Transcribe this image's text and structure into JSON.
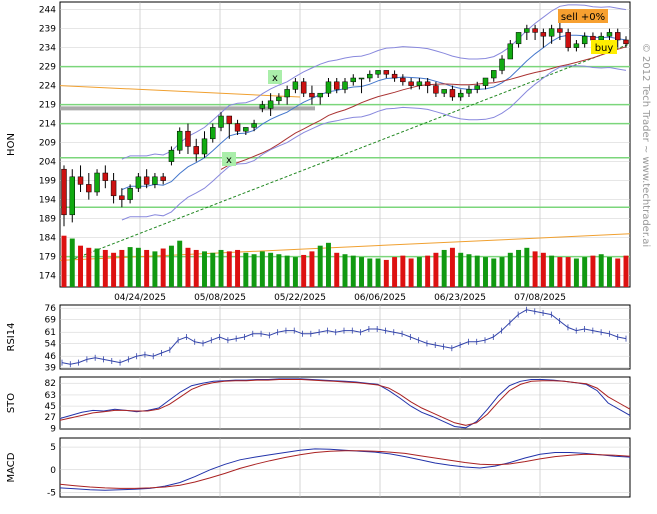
{
  "chart_data": {
    "type": "candlestick",
    "ticker": "HON",
    "watermark": "© 2012 Tech Trader ~ www.techtrader.ai",
    "x_labels": [
      "04/24/2025",
      "05/08/2025",
      "05/22/2025",
      "06/06/2025",
      "06/23/2025",
      "07/08/2025"
    ],
    "price": {
      "ylabel": "HON",
      "ylim": [
        171,
        246
      ],
      "yticks": [
        174,
        179,
        184,
        189,
        194,
        199,
        204,
        209,
        214,
        219,
        224,
        229,
        234,
        239,
        244
      ],
      "candles": [
        [
          202,
          203,
          187,
          190
        ],
        [
          190,
          202,
          188,
          200
        ],
        [
          200,
          203,
          196,
          198
        ],
        [
          198,
          201,
          194,
          196
        ],
        [
          196,
          202,
          195,
          201
        ],
        [
          201,
          203,
          197,
          199
        ],
        [
          199,
          201,
          193,
          195
        ],
        [
          195,
          197,
          192,
          194
        ],
        [
          194,
          198,
          193,
          197
        ],
        [
          197,
          201,
          196,
          200
        ],
        [
          200,
          202,
          197,
          198
        ],
        [
          198,
          201,
          197,
          200
        ],
        [
          200,
          201,
          198,
          199
        ],
        [
          204,
          208,
          203,
          207
        ],
        [
          207,
          213,
          206,
          212
        ],
        [
          212,
          214,
          206,
          208
        ],
        [
          208,
          210,
          204,
          206
        ],
        [
          206,
          212,
          205,
          210
        ],
        [
          210,
          214,
          209,
          213
        ],
        [
          213,
          217,
          212,
          216
        ],
        [
          216,
          216,
          210,
          214
        ],
        [
          214,
          215,
          211,
          212
        ],
        [
          212,
          213,
          211,
          213
        ],
        [
          213,
          215,
          212,
          214
        ],
        [
          218,
          220,
          217,
          219
        ],
        [
          218,
          222,
          216,
          220
        ],
        [
          220,
          222,
          219,
          221
        ],
        [
          221,
          224,
          219,
          223
        ],
        [
          223,
          226,
          222,
          225
        ],
        [
          225,
          226,
          221,
          222
        ],
        [
          222,
          224,
          219,
          221
        ],
        [
          221,
          222,
          219,
          222
        ],
        [
          222,
          226,
          221,
          225
        ],
        [
          225,
          226,
          222,
          223
        ],
        [
          223,
          226,
          222,
          225
        ],
        [
          225,
          227,
          224,
          226
        ],
        [
          226,
          226,
          222,
          226
        ],
        [
          226,
          228,
          225,
          227
        ],
        [
          227,
          228,
          226,
          228
        ],
        [
          228,
          228,
          226,
          227
        ],
        [
          227,
          228,
          225,
          226
        ],
        [
          226,
          227,
          224,
          225
        ],
        [
          225,
          226,
          223,
          224
        ],
        [
          224,
          226,
          223,
          225
        ],
        [
          225,
          226,
          222,
          224
        ],
        [
          224,
          225,
          221,
          222
        ],
        [
          222,
          223,
          221,
          223
        ],
        [
          223,
          224,
          220,
          221
        ],
        [
          221,
          223,
          220,
          222
        ],
        [
          222,
          224,
          221,
          223
        ],
        [
          223,
          225,
          222,
          224
        ],
        [
          224,
          226,
          223,
          226
        ],
        [
          226,
          228,
          225,
          228
        ],
        [
          228,
          232,
          227,
          231
        ],
        [
          231,
          236,
          231,
          235
        ],
        [
          235,
          238,
          234,
          238
        ],
        [
          238,
          240,
          236,
          239
        ],
        [
          239,
          240,
          236,
          238
        ],
        [
          238,
          239,
          234,
          237
        ],
        [
          237,
          240,
          235,
          239
        ],
        [
          239,
          241,
          236,
          238
        ],
        [
          238,
          239,
          233,
          234
        ],
        [
          234,
          236,
          233,
          235
        ],
        [
          235,
          238,
          234,
          237
        ],
        [
          237,
          238,
          235,
          236
        ],
        [
          236,
          238,
          234,
          237
        ],
        [
          237,
          239,
          235,
          238
        ],
        [
          238,
          239,
          234,
          236
        ],
        [
          236,
          237,
          234,
          235
        ]
      ],
      "volume": [
        72,
        68,
        58,
        55,
        54,
        52,
        48,
        52,
        56,
        55,
        52,
        50,
        54,
        58,
        65,
        55,
        52,
        50,
        48,
        52,
        50,
        52,
        48,
        46,
        50,
        48,
        46,
        44,
        42,
        45,
        50,
        58,
        62,
        48,
        46,
        44,
        42,
        40,
        40,
        38,
        42,
        44,
        40,
        42,
        44,
        48,
        52,
        55,
        48,
        46,
        44,
        42,
        40,
        42,
        48,
        52,
        55,
        50,
        48,
        44,
        42,
        42,
        40,
        42,
        44,
        46,
        42,
        40,
        44
      ],
      "signals": {
        "sell_label": "sell +0%",
        "buy_label": "buy",
        "x_marker": "x"
      }
    },
    "rsi": {
      "ylabel": "RSI14",
      "yticks": [
        39,
        46,
        54,
        61,
        69,
        76
      ],
      "ylim": [
        38,
        78
      ],
      "values": [
        42,
        41,
        42,
        44,
        45,
        44,
        43,
        42,
        44,
        46,
        47,
        46,
        48,
        50,
        56,
        58,
        55,
        54,
        56,
        58,
        56,
        57,
        58,
        60,
        60,
        59,
        61,
        62,
        62,
        60,
        60,
        61,
        62,
        61,
        62,
        62,
        61,
        63,
        63,
        62,
        61,
        60,
        58,
        56,
        54,
        53,
        52,
        51,
        53,
        55,
        55,
        56,
        58,
        62,
        67,
        72,
        75,
        74,
        73,
        72,
        68,
        64,
        62,
        63,
        62,
        61,
        60,
        58,
        57
      ]
    },
    "sto": {
      "ylabel": "STO",
      "yticks": [
        9,
        27,
        45,
        63,
        82
      ],
      "ylim": [
        8,
        92
      ],
      "k": [
        25,
        30,
        35,
        38,
        37,
        40,
        38,
        36,
        38,
        42,
        55,
        68,
        78,
        82,
        85,
        86,
        87,
        87,
        88,
        88,
        89,
        89,
        89,
        88,
        87,
        86,
        85,
        84,
        82,
        80,
        70,
        58,
        45,
        35,
        28,
        20,
        12,
        10,
        20,
        40,
        62,
        78,
        85,
        88,
        88,
        87,
        85,
        83,
        80,
        70,
        50,
        40,
        30
      ],
      "d": [
        22,
        26,
        30,
        34,
        36,
        38,
        38,
        37,
        37,
        40,
        48,
        60,
        72,
        79,
        83,
        85,
        86,
        86,
        87,
        87,
        88,
        88,
        88,
        87,
        86,
        85,
        84,
        83,
        81,
        79,
        74,
        64,
        52,
        42,
        34,
        26,
        18,
        14,
        18,
        32,
        52,
        70,
        80,
        85,
        86,
        86,
        85,
        83,
        81,
        74,
        60,
        50,
        40
      ]
    },
    "macd": {
      "ylabel": "MACD",
      "yticks": [
        -5,
        0,
        5
      ],
      "ylim": [
        -6,
        7
      ],
      "macd": [
        -4,
        -4.2,
        -4.4,
        -4.5,
        -4.4,
        -4.3,
        -4.1,
        -3.6,
        -2.8,
        -1.5,
        0,
        1.2,
        2.2,
        2.8,
        3.3,
        3.8,
        4.3,
        4.6,
        4.5,
        4.3,
        4.1,
        3.9,
        3.5,
        2.9,
        2.2,
        1.5,
        1,
        0.6,
        0.4,
        0.8,
        1.6,
        2.6,
        3.4,
        3.8,
        3.8,
        3.6,
        3.3,
        3.0,
        2.8
      ],
      "signal": [
        -3.2,
        -3.5,
        -3.8,
        -4.0,
        -4.1,
        -4.1,
        -4.0,
        -3.8,
        -3.4,
        -2.7,
        -1.8,
        -0.8,
        0.3,
        1.2,
        2.0,
        2.7,
        3.3,
        3.8,
        4.1,
        4.2,
        4.2,
        4.1,
        3.9,
        3.6,
        3.1,
        2.6,
        2.1,
        1.6,
        1.2,
        1.1,
        1.3,
        1.8,
        2.4,
        2.9,
        3.2,
        3.4,
        3.3,
        3.2,
        3.0
      ]
    }
  }
}
